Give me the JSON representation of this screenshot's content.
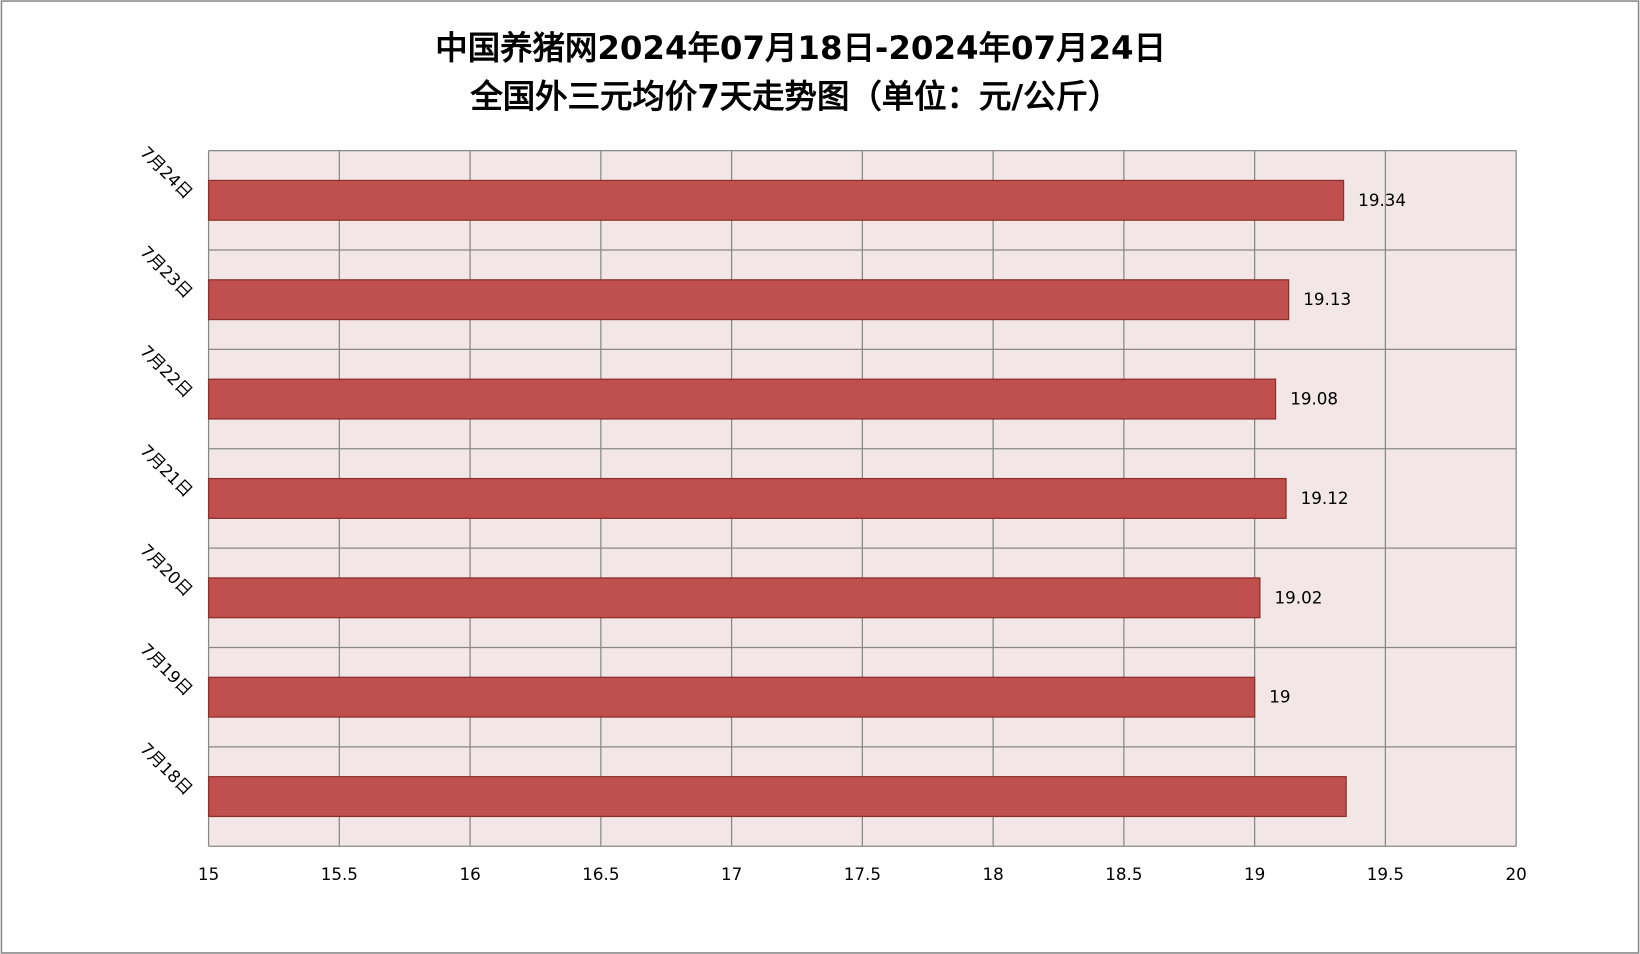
{
  "chart_data": {
    "type": "hbar",
    "title": "中国养猪网2024年07月18日-2024年07月24日",
    "subtitle": "全国外三元均价7天走势图（单位：元/公斤）",
    "categories": [
      "7月18日",
      "7月19日",
      "7月20日",
      "7月21日",
      "7月22日",
      "7月23日",
      "7月24日"
    ],
    "values": [
      19.35,
      19,
      19.02,
      19.12,
      19.08,
      19.13,
      19.34
    ],
    "value_labels": [
      null,
      "19",
      "19.02",
      "19.12",
      "19.08",
      "19.13",
      "19.34"
    ],
    "color": "#c0504d",
    "xlim": [
      15,
      20
    ],
    "xticks": [
      15,
      15.5,
      16,
      16.5,
      17,
      17.5,
      18,
      18.5,
      19,
      19.5,
      20
    ],
    "grid": true
  }
}
